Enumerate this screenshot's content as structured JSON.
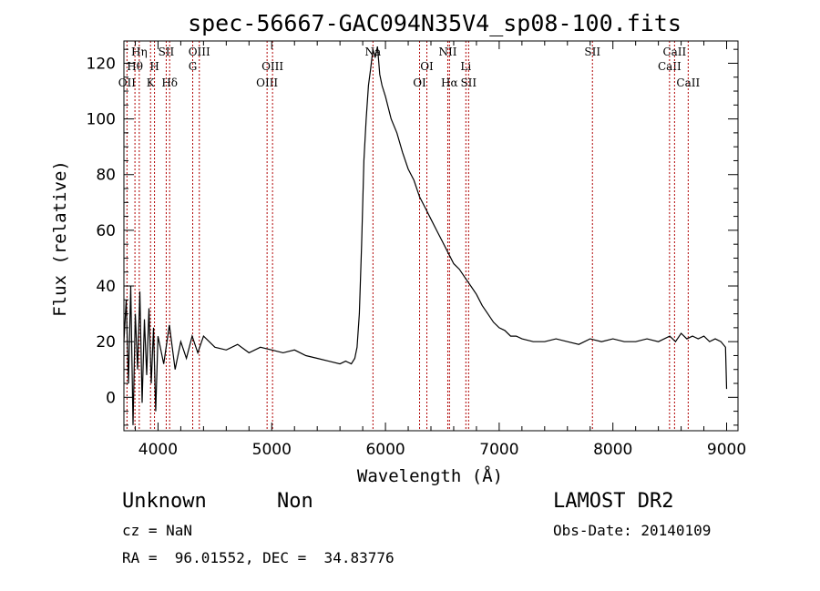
{
  "chart_data": {
    "type": "line",
    "title": "spec-56667-GAC094N35V4_sp08-100.fits",
    "xlabel": "Wavelength (Å)",
    "ylabel": "Flux (relative)",
    "xlim": [
      3700,
      9100
    ],
    "ylim": [
      -12,
      128
    ],
    "x_ticks": [
      4000,
      5000,
      6000,
      7000,
      8000,
      9000
    ],
    "y_ticks": [
      0,
      20,
      40,
      60,
      80,
      100,
      120
    ],
    "grid": false,
    "line_color": "#000000",
    "marker_line_color": "#b00000",
    "spectrum": {
      "x": [
        3700,
        3720,
        3740,
        3760,
        3780,
        3800,
        3820,
        3840,
        3860,
        3880,
        3900,
        3920,
        3940,
        3960,
        3980,
        4000,
        4050,
        4100,
        4150,
        4200,
        4250,
        4300,
        4350,
        4400,
        4500,
        4600,
        4700,
        4800,
        4900,
        5000,
        5100,
        5200,
        5300,
        5400,
        5500,
        5600,
        5650,
        5700,
        5730,
        5750,
        5770,
        5790,
        5810,
        5830,
        5850,
        5870,
        5890,
        5910,
        5930,
        5950,
        5970,
        6000,
        6050,
        6100,
        6150,
        6200,
        6250,
        6300,
        6350,
        6400,
        6450,
        6500,
        6550,
        6600,
        6650,
        6700,
        6750,
        6800,
        6850,
        6900,
        6950,
        7000,
        7050,
        7100,
        7150,
        7200,
        7300,
        7400,
        7500,
        7600,
        7700,
        7800,
        7900,
        8000,
        8100,
        8200,
        8300,
        8400,
        8500,
        8550,
        8600,
        8650,
        8700,
        8750,
        8800,
        8850,
        8900,
        8950,
        8990,
        9000
      ],
      "y": [
        20,
        35,
        5,
        40,
        -10,
        30,
        10,
        38,
        -2,
        28,
        8,
        32,
        5,
        25,
        -5,
        22,
        12,
        26,
        10,
        20,
        14,
        22,
        16,
        22,
        18,
        17,
        19,
        16,
        18,
        17,
        16,
        17,
        15,
        14,
        13,
        12,
        13,
        12,
        14,
        18,
        30,
        55,
        85,
        100,
        112,
        118,
        125,
        122,
        126,
        116,
        112,
        108,
        100,
        95,
        88,
        82,
        78,
        72,
        68,
        64,
        60,
        56,
        52,
        48,
        46,
        43,
        40,
        37,
        33,
        30,
        27,
        25,
        24,
        22,
        22,
        21,
        20,
        20,
        21,
        20,
        19,
        21,
        20,
        21,
        20,
        20,
        21,
        20,
        22,
        20,
        23,
        21,
        22,
        21,
        22,
        20,
        21,
        20,
        18,
        3
      ]
    },
    "line_markers": [
      {
        "x": 3727,
        "label": "OII",
        "row": 2
      },
      {
        "x": 3797,
        "label": "Hθ",
        "row": 1
      },
      {
        "x": 3835,
        "label": "Hη",
        "row": 0
      },
      {
        "x": 3934,
        "label": "K",
        "row": 2
      },
      {
        "x": 3969,
        "label": "H",
        "row": 1
      },
      {
        "x": 4072,
        "label": "SII",
        "row": 0
      },
      {
        "x": 4102,
        "label": "Hδ",
        "row": 2
      },
      {
        "x": 4305,
        "label": "G",
        "row": 1
      },
      {
        "x": 4363,
        "label": "OIII",
        "row": 0
      },
      {
        "x": 4959,
        "label": "OIII",
        "row": 2
      },
      {
        "x": 5007,
        "label": "OIII",
        "row": 1
      },
      {
        "x": 5890,
        "label": "Na",
        "row": 0
      },
      {
        "x": 6300,
        "label": "OI",
        "row": 2
      },
      {
        "x": 6364,
        "label": "OI",
        "row": 1
      },
      {
        "x": 6548,
        "label": "NII",
        "row": 0
      },
      {
        "x": 6563,
        "label": "Hα",
        "row": 2
      },
      {
        "x": 6707,
        "label": "Li",
        "row": 1
      },
      {
        "x": 6731,
        "label": "SII",
        "row": 2
      },
      {
        "x": 7820,
        "label": "SII",
        "row": 0
      },
      {
        "x": 8498,
        "label": "CaII",
        "row": 1
      },
      {
        "x": 8542,
        "label": "CaII",
        "row": 0
      },
      {
        "x": 8662,
        "label": "CaII",
        "row": 2
      }
    ]
  },
  "footer": {
    "object_class": "Unknown",
    "object_subclass": "Non",
    "redshift_text": "cz = NaN",
    "coords_text": "RA =  96.01552, DEC =  34.83776",
    "survey": "LAMOST DR2",
    "obs_date": "Obs-Date: 20140109"
  }
}
